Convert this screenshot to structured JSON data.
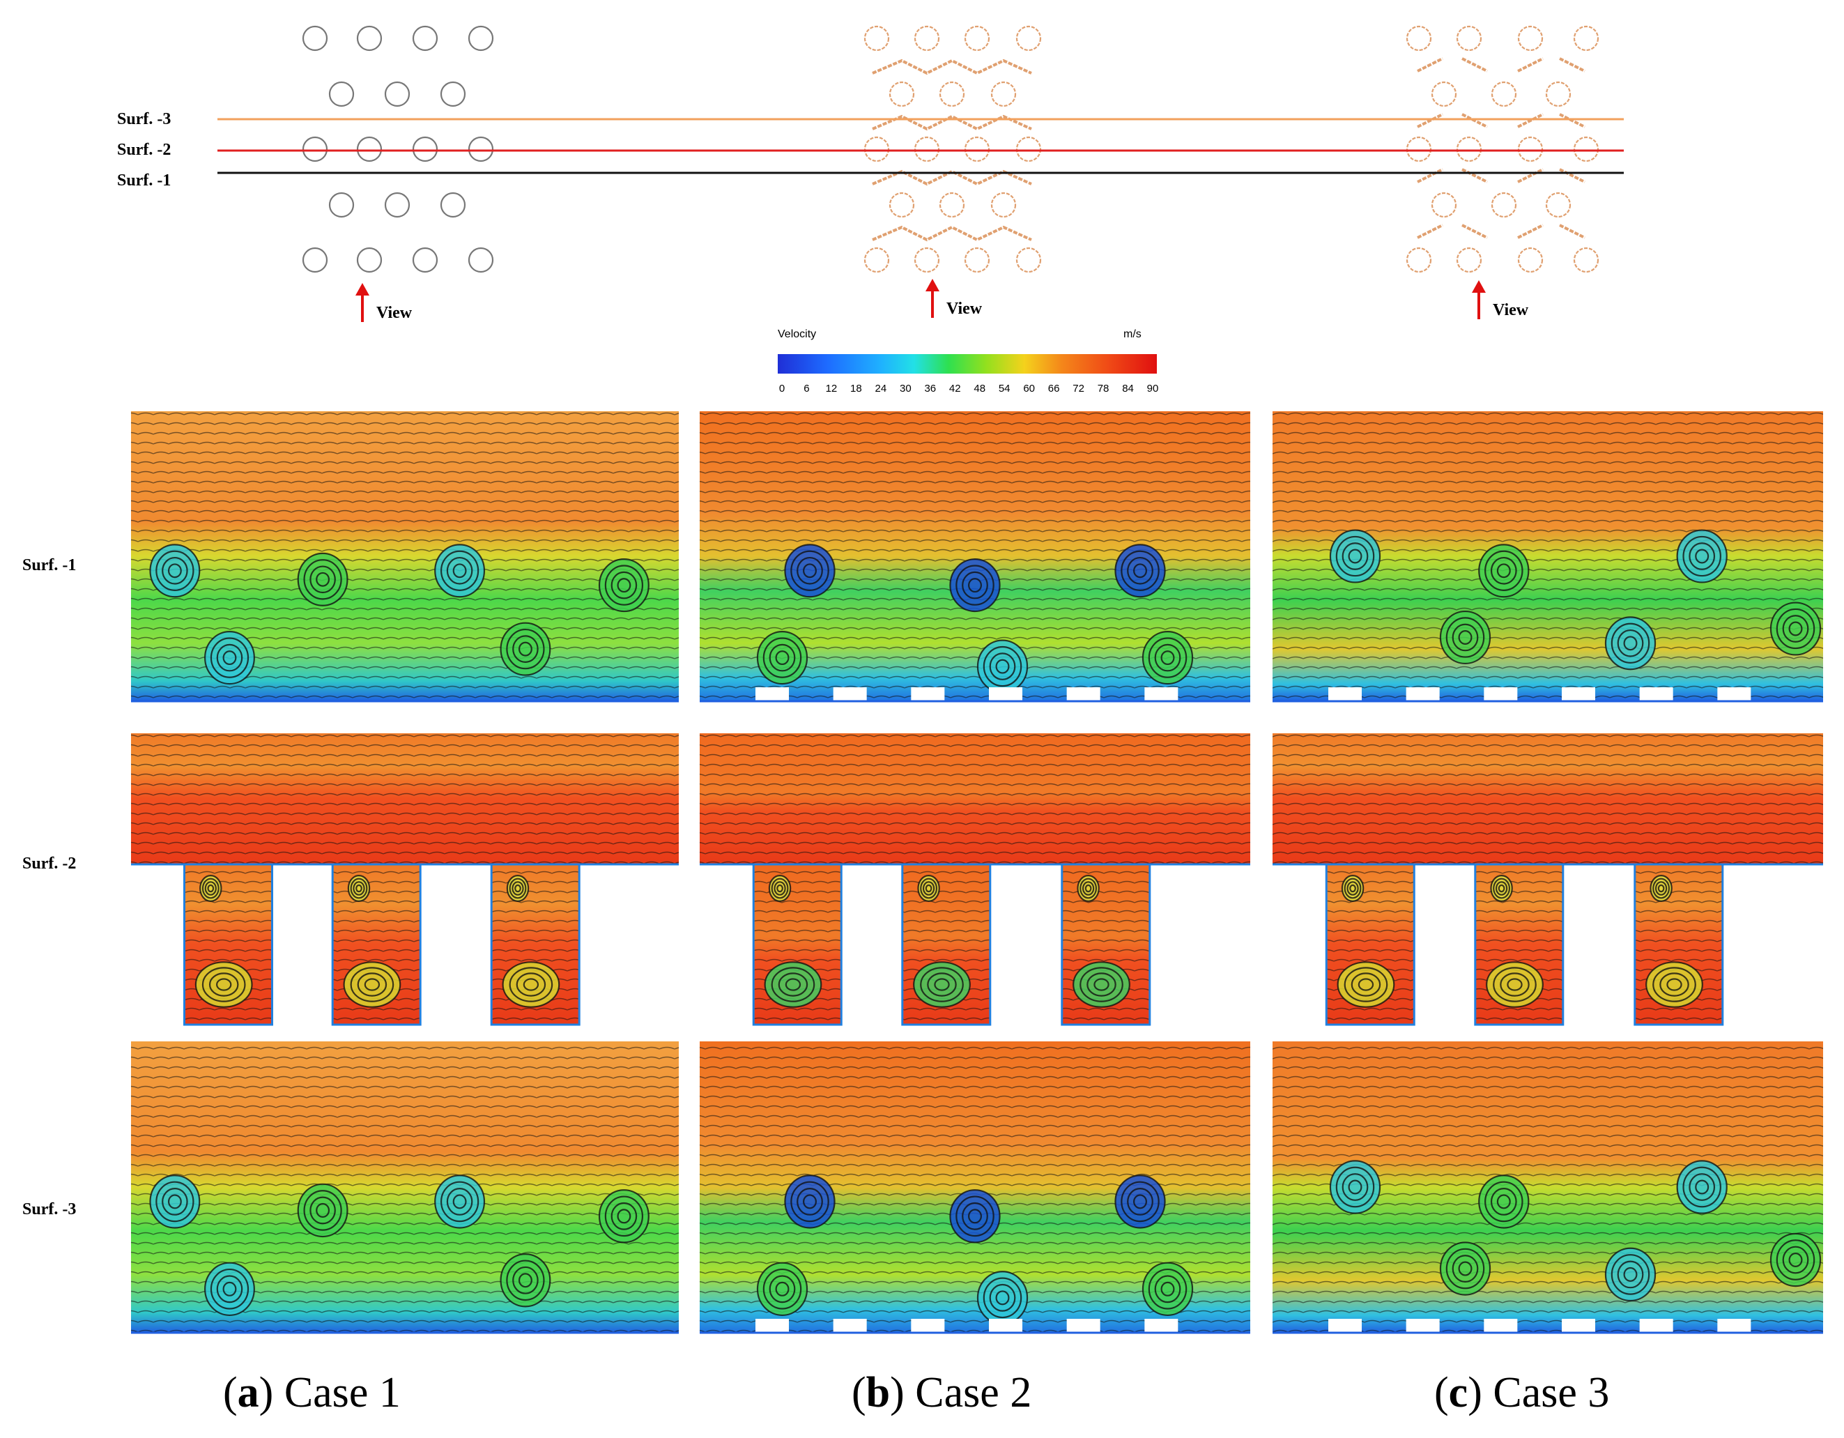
{
  "surf_labels_top": [
    "Surf. -3",
    "Surf. -2",
    "Surf. -1"
  ],
  "surf_labels_side": [
    "Surf. -1",
    "Surf. -2",
    "Surf. -3"
  ],
  "view_label": "View",
  "colorbar": {
    "title": "Velocity",
    "unit": "m/s",
    "ticks": [
      "0",
      "6",
      "12",
      "18",
      "24",
      "30",
      "36",
      "42",
      "48",
      "54",
      "60",
      "66",
      "72",
      "78",
      "84",
      "90"
    ],
    "colors": [
      "#1f2fd6",
      "#1e6bff",
      "#1fb0ff",
      "#22e0e6",
      "#28e89c",
      "#2ee050",
      "#53dc2a",
      "#93e01e",
      "#d4e61c",
      "#f4d21c",
      "#f7a81c",
      "#f4861a",
      "#f46a18",
      "#f04b16",
      "#ea2a14",
      "#e01010"
    ]
  },
  "surface_line_colors": [
    "#f2a05c",
    "#e02020",
    "#111111"
  ],
  "circle_colors": [
    "#777777",
    "#e0a070",
    "#e0a070"
  ],
  "captions": [
    {
      "letter": "a",
      "text": " Case 1"
    },
    {
      "letter": "b",
      "text": " Case 2"
    },
    {
      "letter": "c",
      "text": " Case 3"
    }
  ]
}
